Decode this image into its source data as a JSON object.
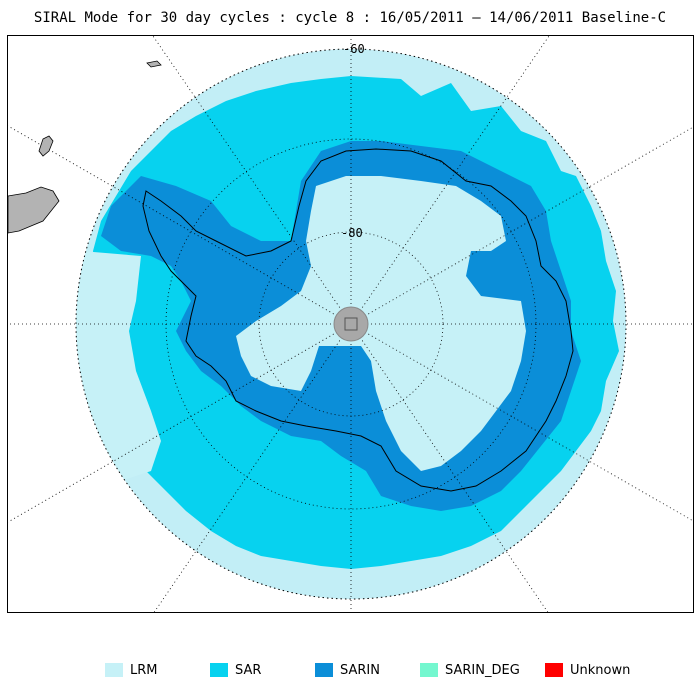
{
  "title": "SIRAL Mode for 30 day cycles : cycle 8 : 16/05/2011 – 14/06/2011 Baseline-C",
  "map": {
    "projection": "south-polar-stereographic",
    "latitude_labels": [
      "-60",
      "-80"
    ],
    "land_color": "#b3b3b3",
    "pole_hole_color": "#a8a8a8"
  },
  "legend": [
    {
      "label": "LRM",
      "color": "#c6f1f7"
    },
    {
      "label": "SAR",
      "color": "#07d2ef"
    },
    {
      "label": "SARIN",
      "color": "#0b8ed8"
    },
    {
      "label": "SARIN_DEG",
      "color": "#74f7cf"
    },
    {
      "label": "Unknown",
      "color": "#ff0000"
    }
  ],
  "colors": {
    "ocean_edge": "#c2eef6",
    "coastline": "#000000",
    "graticule": "#000000"
  }
}
